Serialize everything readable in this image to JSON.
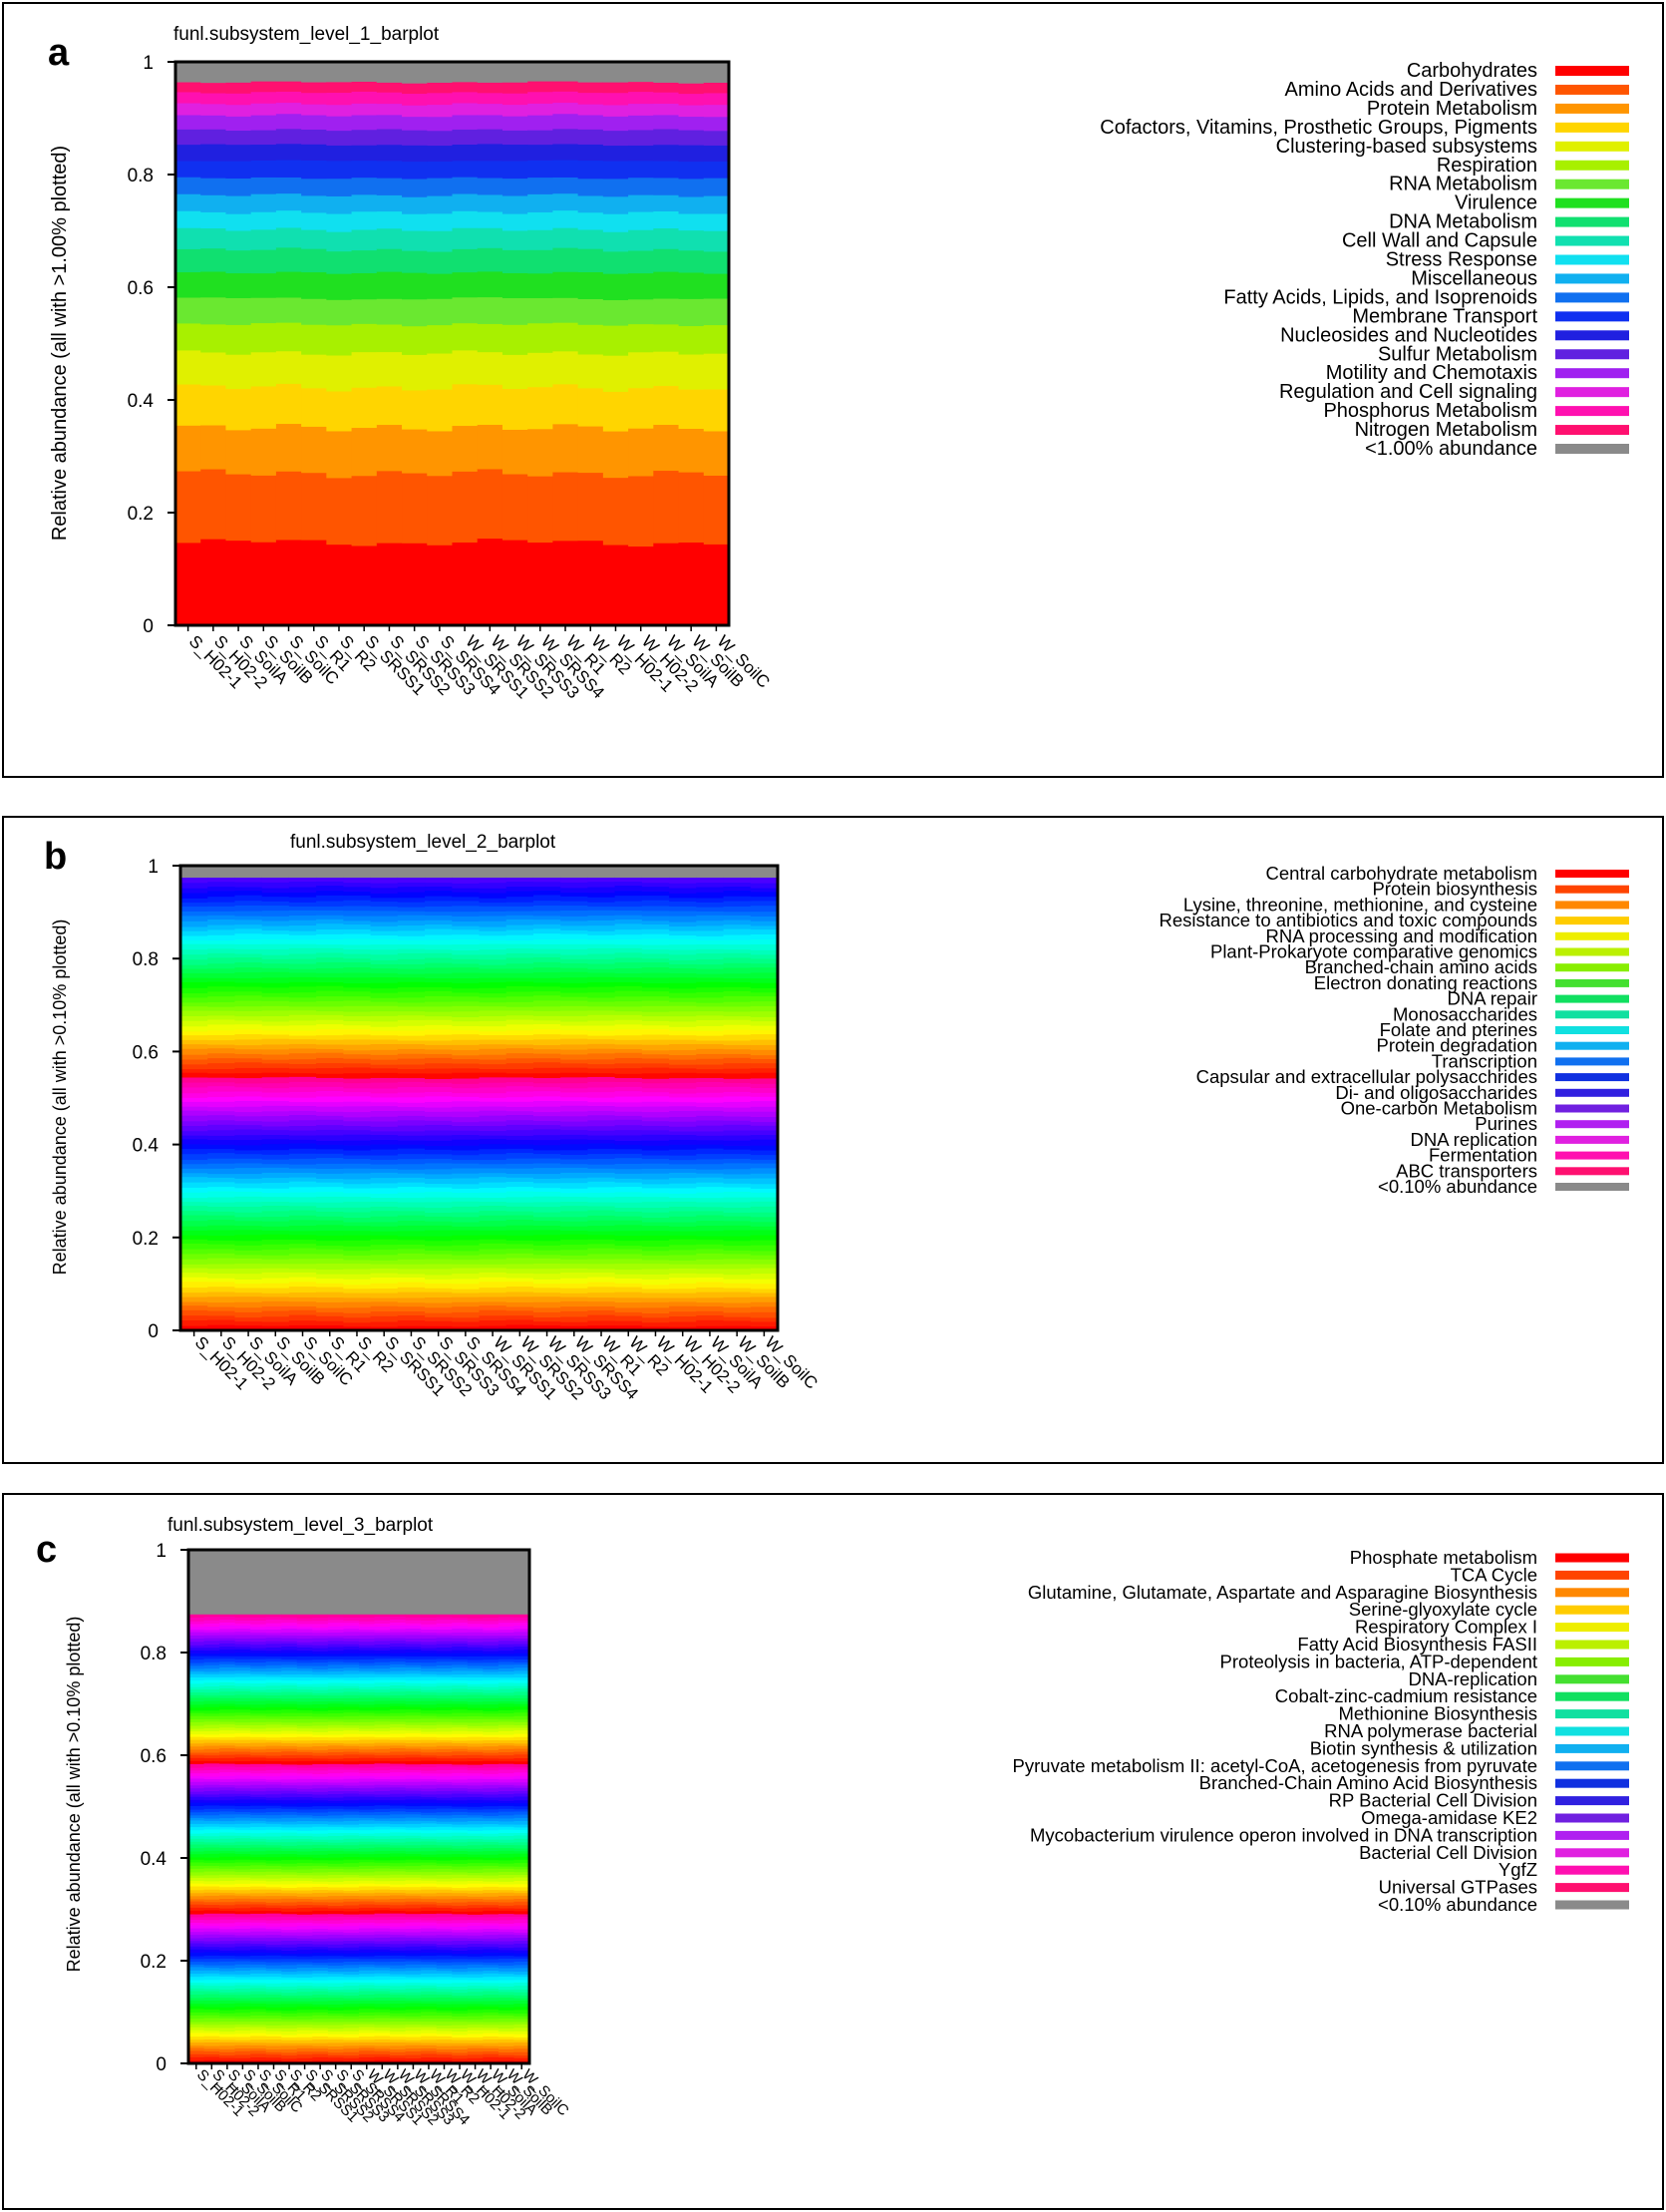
{
  "panels": [
    {
      "letter": "a",
      "chart_data": {
        "type": "stacked-bar",
        "title": "funl.subsystem_level_1_barplot",
        "ylabel": "Relative abundance (all with >1.00% plotted)",
        "xlabel": "",
        "ylim": [
          0,
          1
        ],
        "yticks": [
          "0",
          "0.2",
          "0.4",
          "0.6",
          "0.8",
          "1"
        ],
        "categories": [
          "S_H02-1",
          "S_H02-2",
          "S_SoilA",
          "S_SoilB",
          "S_SoilC",
          "S_R1",
          "S_R2",
          "S_SRSS1",
          "S_SRSS2",
          "S_SRSS3",
          "S_SRSS4",
          "W_SRSS1",
          "W_SRSS2",
          "W_SRSS3",
          "W_SRSS4",
          "W_R1",
          "W_R2",
          "W_H02-1",
          "W_H02-2",
          "W_SoilA",
          "W_SoilB",
          "W_SoilC"
        ],
        "series_names": [
          "Carbohydrates",
          "Amino Acids and Derivatives",
          "Protein Metabolism",
          "Cofactors, Vitamins, Prosthetic Groups, Pigments",
          "Clustering-based subsystems",
          "Respiration",
          "RNA Metabolism",
          "Virulence",
          "DNA Metabolism",
          "Cell Wall and Capsule",
          "Stress Response",
          "Miscellaneous",
          "Fatty Acids, Lipids, and Isoprenoids",
          "Membrane Transport",
          "Nucleosides and Nucleotides",
          "Sulfur Metabolism",
          "Motility and Chemotaxis",
          "Regulation and Cell signaling",
          "Phosphorus Metabolism",
          "Nitrogen Metabolism",
          "<1.00% abundance"
        ],
        "colors": [
          "#ff0000",
          "#ff5500",
          "#ff9500",
          "#ffd500",
          "#e0f000",
          "#a8f000",
          "#6ae830",
          "#20e020",
          "#10e070",
          "#10e0b0",
          "#10e0f0",
          "#10b0f0",
          "#1070f0",
          "#1030f0",
          "#2020e0",
          "#6020e0",
          "#a020f0",
          "#e020e0",
          "#ff10b0",
          "#ff1070",
          "#8a8a8a"
        ],
        "mean_fractions": [
          0.145,
          0.12,
          0.08,
          0.07,
          0.06,
          0.05,
          0.045,
          0.045,
          0.04,
          0.035,
          0.03,
          0.03,
          0.03,
          0.03,
          0.028,
          0.026,
          0.025,
          0.02,
          0.02,
          0.018,
          0.035
        ]
      }
    },
    {
      "letter": "b",
      "chart_data": {
        "type": "stacked-bar",
        "title": "funl.subsystem_level_2_barplot",
        "ylabel": "Relative abundance (all with >0.10% plotted)",
        "xlabel": "",
        "ylim": [
          0,
          1
        ],
        "yticks": [
          "0",
          "0.2",
          "0.4",
          "0.6",
          "0.8",
          "1"
        ],
        "categories": [
          "S_H02-1",
          "S_H02-2",
          "S_SoilA",
          "S_SoilB",
          "S_SoilC",
          "S_R1",
          "S_R2",
          "S_SRSS1",
          "S_SRSS2",
          "S_SRSS3",
          "S_SRSS4",
          "W_SRSS1",
          "W_SRSS2",
          "W_SRSS3",
          "W_SRSS4",
          "W_R1",
          "W_R2",
          "W_H02-1",
          "W_H02-2",
          "W_SoilA",
          "W_SoilB",
          "W_SoilC"
        ],
        "legend": [
          "Central carbohydrate metabolism",
          "Protein biosynthesis",
          "Lysine, threonine, methionine, and cysteine",
          "Resistance to antibiotics and toxic compounds",
          "RNA processing and modification",
          "Plant-Prokaryote comparative genomics",
          "Branched-chain amino acids",
          "Electron donating reactions",
          "DNA repair",
          "Monosaccharides",
          "Folate and pterines",
          "Protein degradation",
          "Transcription",
          "Capsular and extracellular polysacchrides",
          "Di- and oligosaccharides",
          "One-carbon Metabolism",
          "Purines",
          "DNA replication",
          "Fermentation",
          "ABC transporters",
          "<0.10% abundance"
        ],
        "legend_colors": [
          "#ff0000",
          "#ff4400",
          "#ff8800",
          "#ffcc00",
          "#eeee00",
          "#bbf000",
          "#88ee00",
          "#44e030",
          "#10e060",
          "#10e0a0",
          "#10e0e0",
          "#10b0f0",
          "#1070f0",
          "#1030e0",
          "#3020e0",
          "#7020e0",
          "#b020f0",
          "#e020e0",
          "#ff10b0",
          "#ff1070",
          "#8a8a8a"
        ],
        "n_segments": 95,
        "other_fraction": 0.025
      }
    },
    {
      "letter": "c",
      "chart_data": {
        "type": "stacked-bar",
        "title": "funl.subsystem_level_3_barplot",
        "ylabel": "Relative abundance (all with >0.10% plotted)",
        "xlabel": "",
        "ylim": [
          0,
          1
        ],
        "yticks": [
          "0",
          "0.2",
          "0.4",
          "0.6",
          "0.8",
          "1"
        ],
        "categories": [
          "S_H02-1",
          "S_H02-2",
          "S_SoilA",
          "S_SoilB",
          "S_SoilC",
          "S_R1",
          "S_R2",
          "S_SRSS1",
          "S_SRSS2",
          "S_SRSS3",
          "S_SRSS4",
          "W_SRSS1",
          "W_SRSS2",
          "W_SRSS3",
          "W_SRSS4",
          "W_R1",
          "W_R2",
          "W_H02-1",
          "W_H02-2",
          "W_SoilA",
          "W_SoilB",
          "W_SoilC"
        ],
        "legend": [
          "Phosphate metabolism",
          "TCA Cycle",
          "Glutamine, Glutamate, Aspartate and Asparagine Biosynthesis",
          "Serine-glyoxylate cycle",
          "Respiratory Complex I",
          "Fatty Acid Biosynthesis FASII",
          "Proteolysis in bacteria, ATP-dependent",
          "DNA-replication",
          "Cobalt-zinc-cadmium resistance",
          "Methionine Biosynthesis",
          "RNA polymerase bacterial",
          "Biotin synthesis & utilization",
          "Pyruvate metabolism II: acetyl-CoA, acetogenesis from pyruvate",
          "Branched-Chain Amino Acid Biosynthesis",
          "RP Bacterial Cell Division",
          "Omega-amidase KE2",
          "Mycobacterium virulence operon involved in DNA transcription",
          "Bacterial Cell Division",
          "YgfZ",
          "Universal GTPases",
          "<0.10% abundance"
        ],
        "legend_colors": [
          "#ff0000",
          "#ff4400",
          "#ff8800",
          "#ffcc00",
          "#eeee00",
          "#bbf000",
          "#88ee00",
          "#44e030",
          "#10e060",
          "#10e0a0",
          "#10e0e0",
          "#10b0f0",
          "#1070f0",
          "#1030e0",
          "#3020e0",
          "#7020e0",
          "#b020f0",
          "#e020e0",
          "#ff10b0",
          "#ff1070",
          "#8a8a8a"
        ],
        "n_segments": 150,
        "other_fraction": 0.125
      }
    }
  ]
}
